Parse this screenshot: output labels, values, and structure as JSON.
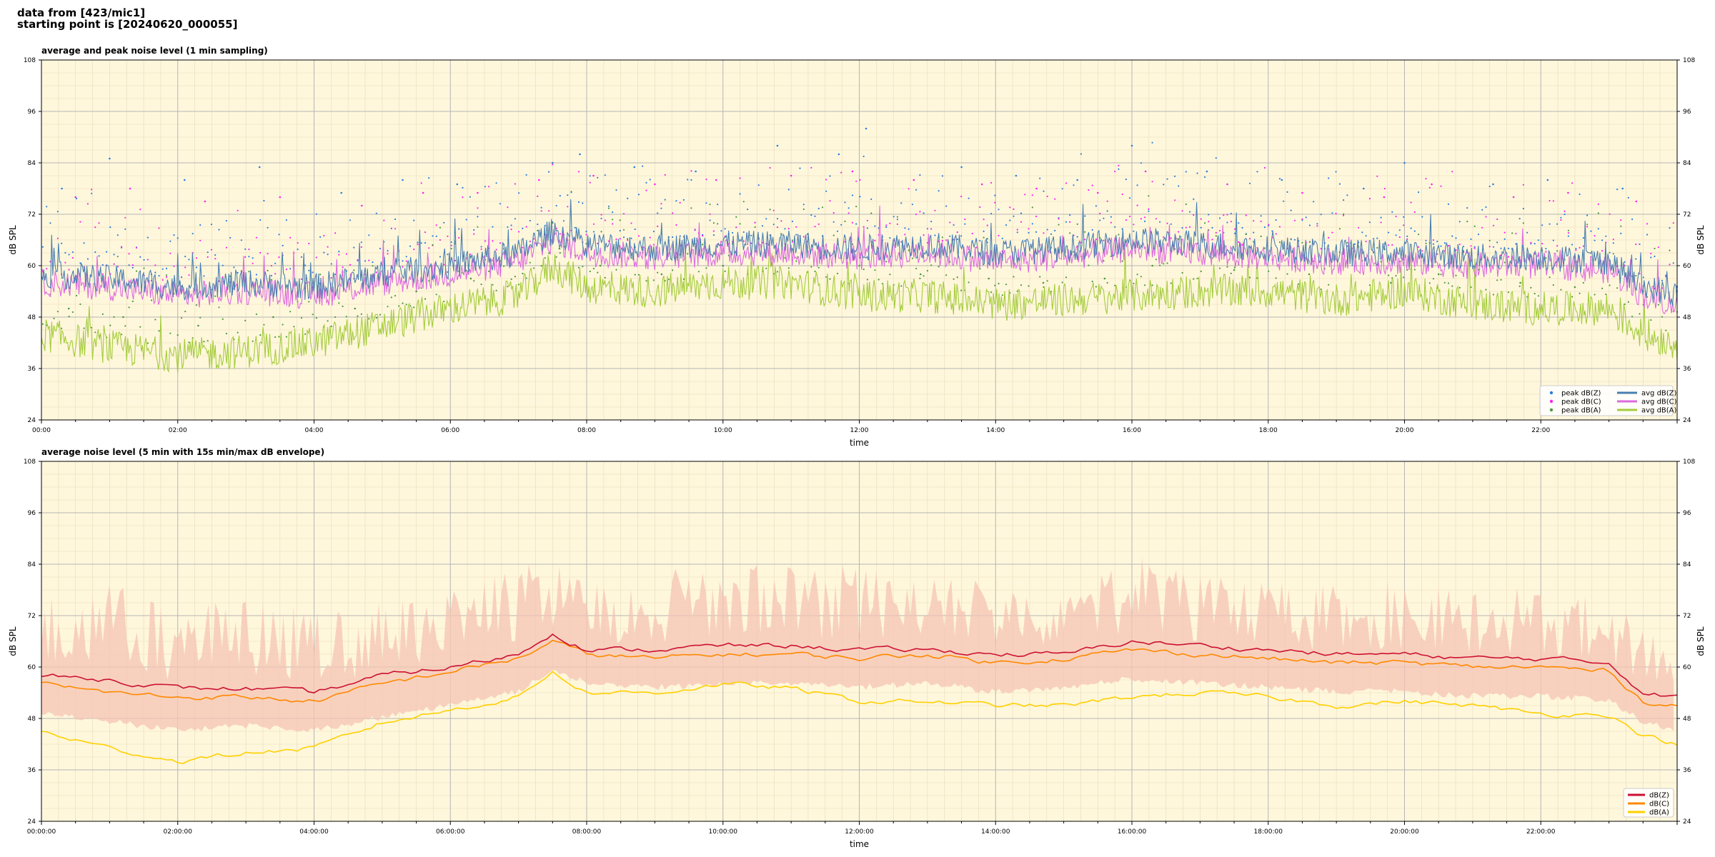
{
  "header": {
    "line1": "data from [423/mic1]",
    "line2": "starting point is [20240620_000055]"
  },
  "colors": {
    "background": "#fff7dc",
    "peak_z": "#2a7fe0",
    "peak_c": "#ff22ee",
    "peak_a": "#4a9a3a",
    "avg_z": "#4a7fb0",
    "avg_c": "#dd6ae0",
    "avg_a": "#a4cc3c",
    "env": "#f6c4b4",
    "db_z": "#cc1133",
    "db_c": "#ff8800",
    "db_a": "#ffd000"
  },
  "chart_data": [
    {
      "type": "line",
      "title": "average and peak noise level (1 min sampling)",
      "xlabel": "time",
      "ylabel": "dB SPL",
      "x_range_hours": [
        0,
        24
      ],
      "ylim": [
        24,
        108
      ],
      "yticks": [
        24,
        36,
        48,
        60,
        72,
        84,
        96,
        108
      ],
      "xtick_labels": [
        "00:00",
        "02:00",
        "04:00",
        "06:00",
        "08:00",
        "10:00",
        "12:00",
        "14:00",
        "16:00",
        "18:00",
        "20:00",
        "22:00"
      ],
      "grid": true,
      "legend_position": "bottom-right",
      "legend": [
        "peak dB(Z)",
        "peak dB(C)",
        "peak dB(A)",
        "avg dB(Z)",
        "avg dB(C)",
        "avg dB(A)"
      ],
      "series": [
        {
          "name": "avg dB(Z)",
          "kind": "line",
          "x": [
            0,
            1,
            2,
            3,
            4,
            5,
            6,
            7,
            7.5,
            8,
            9,
            10,
            11,
            12,
            13,
            14,
            15,
            16,
            17,
            18,
            19,
            20,
            21,
            22,
            23,
            23.5,
            24
          ],
          "y": [
            58,
            57,
            55,
            56,
            55,
            58,
            60,
            63,
            68,
            65,
            64,
            65,
            65,
            64,
            65,
            63,
            64,
            66,
            65,
            64,
            63,
            63,
            62,
            62,
            61,
            55,
            53
          ]
        },
        {
          "name": "avg dB(C)",
          "kind": "line",
          "x": [
            0,
            1,
            2,
            3,
            4,
            5,
            6,
            7,
            7.5,
            8,
            9,
            10,
            11,
            12,
            13,
            14,
            15,
            16,
            17,
            18,
            19,
            20,
            21,
            22,
            23,
            23.5,
            24
          ],
          "y": [
            56,
            55,
            53,
            54,
            53,
            56,
            58,
            61,
            66,
            63,
            62,
            63,
            63,
            62,
            63,
            61,
            62,
            64,
            63,
            62,
            61,
            61,
            60,
            60,
            59,
            53,
            51
          ]
        },
        {
          "name": "avg dB(A)",
          "kind": "line",
          "x": [
            0,
            1,
            2,
            3,
            4,
            5,
            6,
            7,
            7.5,
            8,
            9,
            10,
            11,
            12,
            13,
            14,
            15,
            16,
            17,
            18,
            19,
            20,
            21,
            22,
            23,
            23.5,
            24
          ],
          "y": [
            44,
            41,
            39,
            40,
            42,
            46,
            50,
            53,
            60,
            55,
            54,
            56,
            56,
            53,
            53,
            51,
            52,
            53,
            54,
            54,
            52,
            54,
            51,
            50,
            50,
            44,
            42
          ]
        },
        {
          "name": "peak dB(Z)",
          "kind": "scatter",
          "x": [
            0.3,
            1.0,
            2.1,
            3.2,
            4.4,
            5.3,
            6.1,
            7.5,
            7.9,
            8.7,
            9.6,
            10.8,
            11.7,
            12.1,
            13.5,
            14.3,
            15.2,
            16.0,
            17.1,
            18.2,
            19.4,
            20.0,
            21.3,
            22.1,
            23.2
          ],
          "y": [
            78,
            85,
            80,
            83,
            77,
            80,
            79,
            84,
            86,
            83,
            82,
            88,
            86,
            92,
            83,
            81,
            80,
            88,
            82,
            80,
            78,
            84,
            79,
            80,
            78
          ]
        },
        {
          "name": "peak dB(C)",
          "kind": "scatter",
          "x": [
            0.5,
            1.3,
            2.4,
            3.5,
            4.7,
            5.6,
            6.4,
            7.3,
            8.1,
            9.0,
            9.9,
            11.0,
            11.9,
            12.8,
            13.8,
            14.6,
            15.5,
            16.2,
            17.4,
            18.5,
            19.7,
            20.4,
            21.6,
            22.4,
            23.4
          ],
          "y": [
            76,
            78,
            75,
            76,
            74,
            77,
            77,
            80,
            81,
            79,
            80,
            81,
            82,
            80,
            79,
            78,
            77,
            82,
            79,
            77,
            76,
            79,
            76,
            77,
            75
          ]
        },
        {
          "name": "peak dB(A)",
          "kind": "scatter",
          "x": [
            0.4,
            1.2,
            2.3,
            3.4,
            4.6,
            5.5,
            6.3,
            7.6,
            8.2,
            9.1,
            10.0,
            11.1,
            12.0,
            12.9,
            13.9,
            14.7,
            15.6,
            16.3,
            17.5,
            18.6,
            19.8,
            20.5,
            21.7,
            22.5,
            23.5
          ],
          "y": [
            50,
            48,
            46,
            48,
            50,
            54,
            57,
            64,
            60,
            58,
            60,
            62,
            60,
            58,
            57,
            56,
            57,
            60,
            59,
            58,
            56,
            58,
            56,
            55,
            54
          ]
        }
      ]
    },
    {
      "type": "area",
      "title": "average noise level (5 min with 15s min/max dB envelope)",
      "xlabel": "time",
      "ylabel": "dB SPL",
      "x_range_hours": [
        0,
        24
      ],
      "ylim": [
        24,
        108
      ],
      "yticks": [
        24,
        36,
        48,
        60,
        72,
        84,
        96,
        108
      ],
      "xtick_labels": [
        "00:00:00",
        "02:00:00",
        "04:00:00",
        "06:00:00",
        "08:00:00",
        "10:00:00",
        "12:00:00",
        "14:00:00",
        "16:00:00",
        "18:00:00",
        "20:00:00",
        "22:00:00"
      ],
      "grid": true,
      "legend_position": "bottom-right",
      "legend": [
        "dB(Z)",
        "dB(C)",
        "dB(A)"
      ],
      "envelope": {
        "x": [
          0,
          1,
          2,
          3,
          4,
          5,
          6,
          7,
          7.5,
          8,
          9,
          10,
          11,
          12,
          13,
          14,
          15,
          16,
          17,
          18,
          19,
          20,
          21,
          22,
          23,
          23.5,
          24
        ],
        "ymin": [
          50,
          48,
          46,
          47,
          46,
          49,
          52,
          55,
          60,
          57,
          56,
          57,
          57,
          56,
          57,
          55,
          56,
          58,
          57,
          56,
          55,
          55,
          54,
          54,
          53,
          48,
          46
        ],
        "ymax": [
          76,
          80,
          74,
          78,
          73,
          76,
          78,
          84,
          85,
          82,
          82,
          86,
          84,
          84,
          82,
          80,
          81,
          87,
          82,
          80,
          79,
          81,
          78,
          79,
          77,
          70,
          64
        ]
      },
      "series": [
        {
          "name": "dB(Z)",
          "x": [
            0,
            1,
            2,
            3,
            4,
            5,
            6,
            7,
            7.5,
            8,
            9,
            10,
            11,
            12,
            13,
            14,
            15,
            16,
            17,
            18,
            19,
            20,
            21,
            22,
            23,
            23.5,
            24
          ],
          "y": [
            58,
            57,
            55,
            55,
            54,
            58,
            60,
            63,
            68,
            64,
            64,
            65,
            65,
            64,
            64,
            63,
            63,
            66,
            65,
            64,
            63,
            63,
            62,
            62,
            61,
            54,
            53
          ]
        },
        {
          "name": "dB(C)",
          "x": [
            0,
            1,
            2,
            3,
            4,
            5,
            6,
            7,
            7.5,
            8,
            9,
            10,
            11,
            12,
            13,
            14,
            15,
            16,
            17,
            18,
            19,
            20,
            21,
            22,
            23,
            23.5,
            24
          ],
          "y": [
            56,
            54,
            53,
            53,
            52,
            56,
            59,
            62,
            66,
            63,
            62,
            63,
            63,
            62,
            63,
            61,
            62,
            64,
            63,
            62,
            61,
            61,
            60,
            60,
            59,
            52,
            51
          ]
        },
        {
          "name": "dB(A)",
          "x": [
            0,
            1,
            2,
            3,
            4,
            5,
            6,
            7,
            7.5,
            8,
            9,
            10,
            11,
            12,
            13,
            14,
            15,
            16,
            17,
            18,
            19,
            20,
            21,
            22,
            23,
            23.5,
            24
          ],
          "y": [
            45,
            41,
            38,
            40,
            41,
            47,
            50,
            53,
            59,
            54,
            54,
            56,
            55,
            52,
            52,
            51,
            51,
            53,
            54,
            53,
            51,
            52,
            51,
            49,
            49,
            44,
            42
          ]
        }
      ]
    }
  ]
}
